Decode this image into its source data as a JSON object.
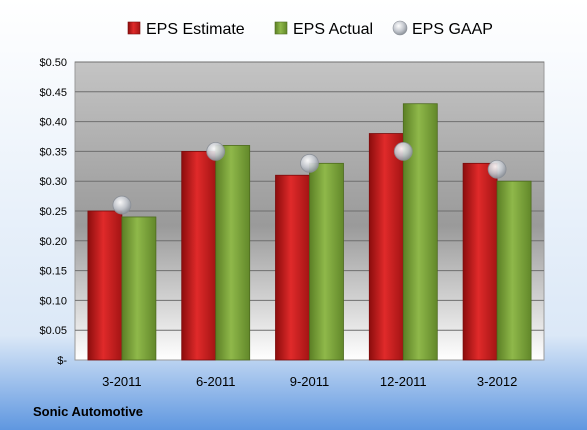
{
  "company": "Sonic Automotive",
  "chart_data": {
    "type": "bar",
    "categories": [
      "3-2011",
      "6-2011",
      "9-2011",
      "12-2011",
      "3-2012"
    ],
    "series": [
      {
        "name": "EPS Estimate",
        "kind": "bar",
        "color": "#cc1f1f",
        "values": [
          0.25,
          0.35,
          0.31,
          0.38,
          0.33
        ]
      },
      {
        "name": "EPS Actual",
        "kind": "bar",
        "color": "#7aa33a",
        "values": [
          0.24,
          0.36,
          0.33,
          0.43,
          0.3
        ]
      },
      {
        "name": "EPS GAAP",
        "kind": "marker",
        "color": "#b9bec8",
        "values": [
          0.26,
          0.35,
          0.33,
          0.35,
          0.32
        ]
      }
    ],
    "yticks": [
      "$-",
      "$0.05",
      "$0.10",
      "$0.15",
      "$0.20",
      "$0.25",
      "$0.30",
      "$0.35",
      "$0.40",
      "$0.45",
      "$0.50"
    ],
    "ylim": [
      0,
      0.5
    ],
    "grid": true,
    "legend": "top"
  }
}
